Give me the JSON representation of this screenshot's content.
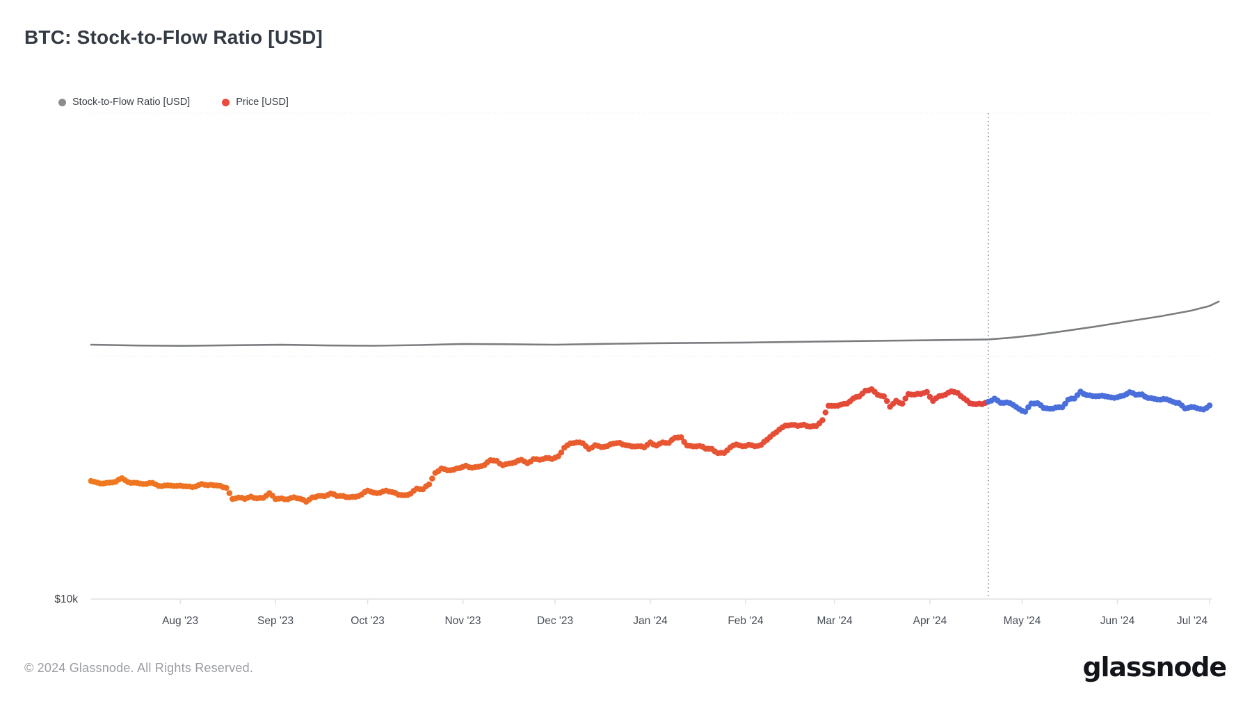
{
  "header": {
    "title": "BTC: Stock-to-Flow Ratio [USD]"
  },
  "legend": [
    {
      "label": "Stock-to-Flow Ratio [USD]",
      "color": "#8c8c8c"
    },
    {
      "label": "Price [USD]",
      "color": "#ea4b3d"
    }
  ],
  "footer": {
    "copyright": "© 2024 Glassnode. All Rights Reserved.",
    "brand": "glassnode"
  },
  "chart_data": {
    "type": "scatter",
    "title": "BTC: Stock-to-Flow Ratio [USD]",
    "grid": "horizontal-dotted",
    "legend_position": "top-left",
    "x_axis": {
      "range": [
        "2023-07-03",
        "2024-07-05"
      ],
      "tick_dates": [
        "2023-08-01",
        "2023-09-01",
        "2023-10-01",
        "2023-11-01",
        "2023-12-01",
        "2024-01-01",
        "2024-02-01",
        "2024-03-01",
        "2024-04-01",
        "2024-05-01",
        "2024-06-01",
        "2024-07-01"
      ],
      "tick_labels": [
        "Aug '23",
        "Sep '23",
        "Oct '23",
        "Nov '23",
        "Dec '23",
        "Jan '24",
        "Feb '24",
        "Mar '24",
        "Apr '24",
        "May '24",
        "Jun '24",
        "Jul '24"
      ]
    },
    "y_axis": {
      "scale": "log",
      "visible_label": "$10k",
      "label_value": 10000,
      "gridline_values": [
        100000,
        1000000
      ],
      "ylim": [
        10000,
        1000000
      ]
    },
    "halving_marker": {
      "date": "2024-04-20",
      "style": "dotted-vertical-line"
    },
    "series": [
      {
        "name": "Stock-to-Flow Ratio [USD]",
        "type": "line",
        "color": "#7a7d80",
        "points": [
          [
            "2023-07-03",
            111500
          ],
          [
            "2023-07-18",
            110600
          ],
          [
            "2023-08-03",
            110300
          ],
          [
            "2023-08-18",
            110900
          ],
          [
            "2023-09-03",
            111400
          ],
          [
            "2023-09-18",
            110700
          ],
          [
            "2023-10-03",
            110400
          ],
          [
            "2023-10-18",
            111100
          ],
          [
            "2023-11-01",
            112300
          ],
          [
            "2023-11-15",
            112000
          ],
          [
            "2023-12-01",
            111500
          ],
          [
            "2023-12-15",
            112300
          ],
          [
            "2024-01-01",
            113000
          ],
          [
            "2024-01-15",
            113400
          ],
          [
            "2024-02-01",
            113800
          ],
          [
            "2024-02-15",
            114400
          ],
          [
            "2024-03-01",
            115100
          ],
          [
            "2024-03-15",
            115700
          ],
          [
            "2024-04-01",
            116300
          ],
          [
            "2024-04-10",
            116700
          ],
          [
            "2024-04-20",
            117200
          ],
          [
            "2024-04-27",
            119000
          ],
          [
            "2024-05-05",
            122000
          ],
          [
            "2024-05-15",
            127000
          ],
          [
            "2024-05-25",
            132500
          ],
          [
            "2024-06-05",
            139500
          ],
          [
            "2024-06-15",
            146000
          ],
          [
            "2024-06-25",
            154000
          ],
          [
            "2024-07-01",
            161000
          ],
          [
            "2024-07-04",
            168000
          ]
        ]
      },
      {
        "name": "Price [USD]",
        "type": "scatter",
        "colors": {
          "start": "#f0791f",
          "pre_halving_end": "#e2423c",
          "post_halving": "#4a6fdb"
        },
        "points": [
          [
            "2023-07-03",
            30620
          ],
          [
            "2023-07-05",
            30180
          ],
          [
            "2023-07-07",
            29910
          ],
          [
            "2023-07-09",
            30170
          ],
          [
            "2023-07-11",
            30410
          ],
          [
            "2023-07-13",
            31470
          ],
          [
            "2023-07-15",
            30330
          ],
          [
            "2023-07-17",
            30140
          ],
          [
            "2023-07-19",
            29890
          ],
          [
            "2023-07-21",
            29790
          ],
          [
            "2023-07-23",
            30080
          ],
          [
            "2023-07-25",
            29230
          ],
          [
            "2023-07-27",
            29350
          ],
          [
            "2023-07-29",
            29320
          ],
          [
            "2023-07-31",
            29230
          ],
          [
            "2023-08-02",
            29150
          ],
          [
            "2023-08-04",
            29080
          ],
          [
            "2023-08-06",
            29050
          ],
          [
            "2023-08-08",
            29770
          ],
          [
            "2023-08-10",
            29430
          ],
          [
            "2023-08-12",
            29400
          ],
          [
            "2023-08-14",
            29290
          ],
          [
            "2023-08-16",
            28700
          ],
          [
            "2023-08-18",
            25840
          ],
          [
            "2023-08-20",
            26190
          ],
          [
            "2023-08-22",
            25840
          ],
          [
            "2023-08-24",
            26430
          ],
          [
            "2023-08-26",
            26010
          ],
          [
            "2023-08-28",
            26100
          ],
          [
            "2023-08-30",
            27300
          ],
          [
            "2023-09-01",
            25800
          ],
          [
            "2023-09-03",
            25970
          ],
          [
            "2023-09-05",
            25750
          ],
          [
            "2023-09-07",
            26250
          ],
          [
            "2023-09-09",
            25900
          ],
          [
            "2023-09-11",
            25160
          ],
          [
            "2023-09-13",
            26220
          ],
          [
            "2023-09-15",
            26600
          ],
          [
            "2023-09-17",
            26530
          ],
          [
            "2023-09-19",
            27210
          ],
          [
            "2023-09-21",
            26570
          ],
          [
            "2023-09-23",
            26580
          ],
          [
            "2023-09-25",
            26250
          ],
          [
            "2023-09-27",
            26350
          ],
          [
            "2023-09-29",
            26910
          ],
          [
            "2023-10-01",
            27970
          ],
          [
            "2023-10-03",
            27430
          ],
          [
            "2023-10-05",
            27410
          ],
          [
            "2023-10-07",
            27960
          ],
          [
            "2023-10-09",
            27590
          ],
          [
            "2023-10-11",
            26870
          ],
          [
            "2023-10-13",
            26760
          ],
          [
            "2023-10-15",
            27160
          ],
          [
            "2023-10-17",
            28520
          ],
          [
            "2023-10-19",
            28330
          ],
          [
            "2023-10-21",
            29680
          ],
          [
            "2023-10-23",
            33090
          ],
          [
            "2023-10-25",
            34500
          ],
          [
            "2023-10-27",
            33910
          ],
          [
            "2023-10-29",
            34090
          ],
          [
            "2023-10-31",
            34650
          ],
          [
            "2023-11-02",
            35440
          ],
          [
            "2023-11-04",
            34730
          ],
          [
            "2023-11-06",
            35050
          ],
          [
            "2023-11-08",
            35650
          ],
          [
            "2023-11-10",
            37310
          ],
          [
            "2023-11-12",
            37060
          ],
          [
            "2023-11-14",
            35550
          ],
          [
            "2023-11-16",
            36160
          ],
          [
            "2023-11-18",
            36570
          ],
          [
            "2023-11-20",
            37460
          ],
          [
            "2023-11-22",
            36250
          ],
          [
            "2023-11-24",
            37720
          ],
          [
            "2023-11-26",
            37450
          ],
          [
            "2023-11-28",
            38060
          ],
          [
            "2023-11-30",
            37720
          ],
          [
            "2023-12-02",
            38690
          ],
          [
            "2023-12-04",
            41990
          ],
          [
            "2023-12-06",
            43770
          ],
          [
            "2023-12-08",
            44170
          ],
          [
            "2023-12-10",
            43790
          ],
          [
            "2023-12-12",
            41490
          ],
          [
            "2023-12-14",
            43020
          ],
          [
            "2023-12-16",
            42240
          ],
          [
            "2023-12-18",
            42660
          ],
          [
            "2023-12-20",
            43670
          ],
          [
            "2023-12-22",
            43970
          ],
          [
            "2023-12-24",
            42990
          ],
          [
            "2023-12-26",
            42520
          ],
          [
            "2023-12-28",
            42610
          ],
          [
            "2023-12-30",
            42140
          ],
          [
            "2024-01-01",
            44180
          ],
          [
            "2024-01-03",
            42850
          ],
          [
            "2024-01-05",
            44160
          ],
          [
            "2024-01-07",
            43940
          ],
          [
            "2024-01-09",
            46110
          ],
          [
            "2024-01-11",
            46340
          ],
          [
            "2024-01-13",
            42850
          ],
          [
            "2024-01-15",
            42510
          ],
          [
            "2024-01-17",
            42740
          ],
          [
            "2024-01-19",
            41620
          ],
          [
            "2024-01-21",
            41550
          ],
          [
            "2024-01-23",
            39880
          ],
          [
            "2024-01-25",
            39960
          ],
          [
            "2024-01-27",
            42120
          ],
          [
            "2024-01-29",
            43300
          ],
          [
            "2024-01-31",
            42580
          ],
          [
            "2024-02-02",
            43190
          ],
          [
            "2024-02-04",
            42580
          ],
          [
            "2024-02-06",
            43090
          ],
          [
            "2024-02-08",
            45300
          ],
          [
            "2024-02-10",
            47750
          ],
          [
            "2024-02-12",
            49940
          ],
          [
            "2024-02-14",
            51800
          ],
          [
            "2024-02-16",
            52120
          ],
          [
            "2024-02-18",
            51660
          ],
          [
            "2024-02-20",
            52260
          ],
          [
            "2024-02-22",
            51300
          ],
          [
            "2024-02-24",
            51570
          ],
          [
            "2024-02-26",
            54520
          ],
          [
            "2024-02-28",
            62500
          ],
          [
            "2024-03-01",
            62440
          ],
          [
            "2024-03-03",
            63170
          ],
          [
            "2024-03-05",
            63800
          ],
          [
            "2024-03-07",
            66930
          ],
          [
            "2024-03-09",
            68300
          ],
          [
            "2024-03-11",
            72080
          ],
          [
            "2024-03-13",
            73090
          ],
          [
            "2024-03-15",
            69340
          ],
          [
            "2024-03-17",
            68390
          ],
          [
            "2024-03-19",
            61910
          ],
          [
            "2024-03-21",
            65500
          ],
          [
            "2024-03-23",
            63780
          ],
          [
            "2024-03-25",
            69880
          ],
          [
            "2024-03-27",
            69460
          ],
          [
            "2024-03-29",
            69890
          ],
          [
            "2024-03-31",
            71280
          ],
          [
            "2024-04-02",
            65450
          ],
          [
            "2024-04-04",
            68510
          ],
          [
            "2024-04-06",
            69360
          ],
          [
            "2024-04-08",
            71630
          ],
          [
            "2024-04-10",
            70630
          ],
          [
            "2024-04-12",
            67120
          ],
          [
            "2024-04-14",
            64030
          ],
          [
            "2024-04-16",
            63450
          ],
          [
            "2024-04-18",
            63510
          ],
          [
            "2024-04-20",
            64940
          ],
          [
            "2024-04-22",
            66840
          ],
          [
            "2024-04-24",
            64280
          ],
          [
            "2024-04-26",
            64490
          ],
          [
            "2024-04-28",
            63110
          ],
          [
            "2024-04-30",
            60640
          ],
          [
            "2024-05-02",
            59120
          ],
          [
            "2024-05-04",
            63890
          ],
          [
            "2024-05-06",
            64050
          ],
          [
            "2024-05-08",
            61190
          ],
          [
            "2024-05-10",
            60790
          ],
          [
            "2024-05-12",
            61480
          ],
          [
            "2024-05-14",
            61580
          ],
          [
            "2024-05-16",
            66250
          ],
          [
            "2024-05-18",
            66920
          ],
          [
            "2024-05-20",
            71420
          ],
          [
            "2024-05-22",
            69170
          ],
          [
            "2024-05-24",
            68530
          ],
          [
            "2024-05-26",
            68510
          ],
          [
            "2024-05-28",
            68380
          ],
          [
            "2024-05-30",
            67640
          ],
          [
            "2024-06-01",
            67760
          ],
          [
            "2024-06-03",
            68810
          ],
          [
            "2024-06-05",
            71080
          ],
          [
            "2024-06-07",
            69340
          ],
          [
            "2024-06-09",
            69650
          ],
          [
            "2024-06-11",
            67310
          ],
          [
            "2024-06-13",
            66770
          ],
          [
            "2024-06-15",
            66190
          ],
          [
            "2024-06-17",
            66480
          ],
          [
            "2024-06-19",
            64960
          ],
          [
            "2024-06-21",
            64140
          ],
          [
            "2024-06-23",
            60930
          ],
          [
            "2024-06-25",
            61790
          ],
          [
            "2024-06-27",
            61000
          ],
          [
            "2024-06-29",
            60320
          ],
          [
            "2024-07-01",
            62680
          ]
        ]
      }
    ]
  }
}
